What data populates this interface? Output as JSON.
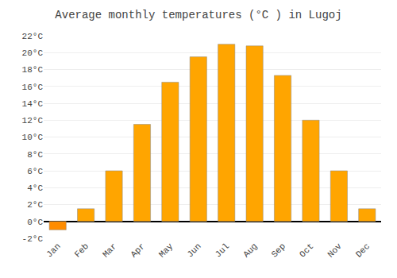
{
  "chart_data": {
    "type": "bar",
    "title": "Average monthly temperatures (°C ) in Lugoj",
    "categories": [
      "Jan",
      "Feb",
      "Mar",
      "Apr",
      "May",
      "Jun",
      "Jul",
      "Aug",
      "Sep",
      "Oct",
      "Nov",
      "Dec"
    ],
    "values": [
      -1.0,
      1.5,
      6.0,
      11.5,
      16.5,
      19.5,
      21.0,
      20.8,
      17.3,
      12.0,
      6.0,
      1.5
    ],
    "colors": [
      "#FF8C00",
      "#FFA500",
      "#FFA500",
      "#FFA500",
      "#FFA500",
      "#FFA500",
      "#FFA500",
      "#FFA500",
      "#FFA500",
      "#FFA500",
      "#FFA500",
      "#FFA500"
    ],
    "ylim": [
      -2,
      22
    ],
    "yticks": [
      {
        "value": -2,
        "label": "-2°C"
      },
      {
        "value": 0,
        "label": "0°C"
      },
      {
        "value": 2,
        "label": "2°C"
      },
      {
        "value": 4,
        "label": "4°C"
      },
      {
        "value": 6,
        "label": "6°C"
      },
      {
        "value": 8,
        "label": "8°C"
      },
      {
        "value": 10,
        "label": "10°C"
      },
      {
        "value": 12,
        "label": "12°C"
      },
      {
        "value": 14,
        "label": "14°C"
      },
      {
        "value": 16,
        "label": "16°C"
      },
      {
        "value": 18,
        "label": "18°C"
      },
      {
        "value": 20,
        "label": "20°C"
      },
      {
        "value": 22,
        "label": "22°C"
      }
    ],
    "grid": true
  }
}
